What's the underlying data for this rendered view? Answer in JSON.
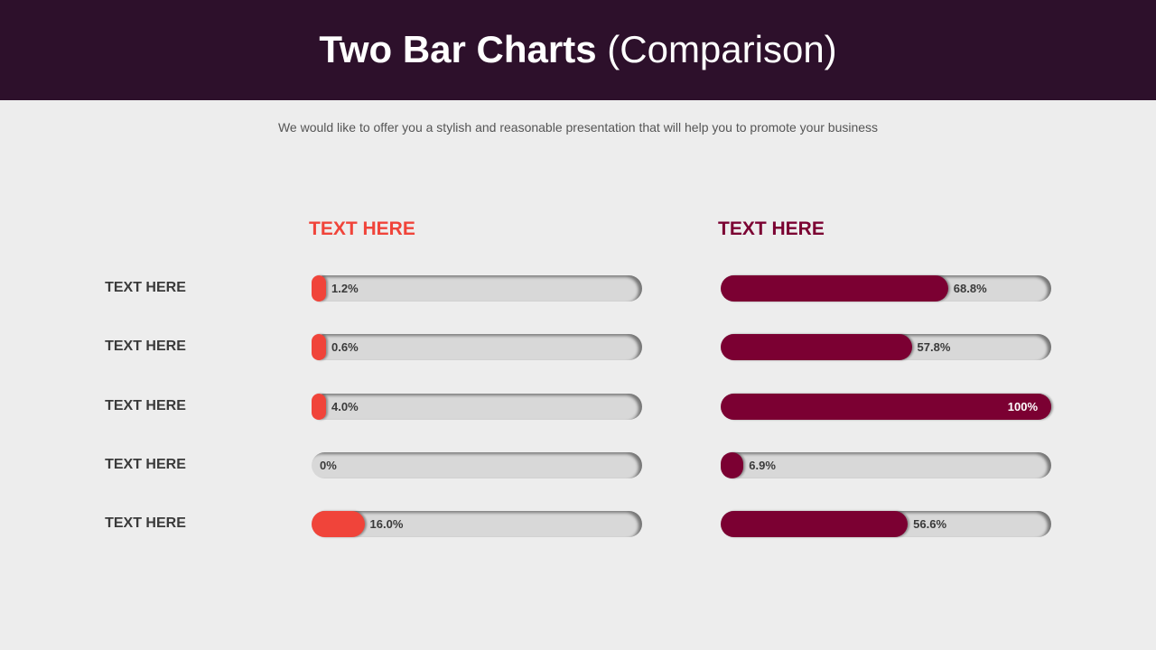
{
  "header": {
    "title_bold": "Two Bar Charts",
    "title_normal": "(Comparison)"
  },
  "subtitle": "We would like to offer you a stylish and reasonable presentation that will help you to promote your business",
  "colors": {
    "background": "#ededed",
    "header": "#2d102b",
    "left_series": "#f0443a",
    "right_series": "#7b0032",
    "track": "#d8d8d8"
  },
  "chart_data": {
    "type": "bar",
    "orientation": "horizontal",
    "categories": [
      "TEXT HERE",
      "TEXT HERE",
      "TEXT HERE",
      "TEXT HERE",
      "TEXT HERE"
    ],
    "xlim": [
      0,
      100
    ],
    "series": [
      {
        "name": "TEXT HERE",
        "values": [
          1.2,
          0.6,
          4.0,
          0,
          16.0
        ],
        "labels": [
          "1.2%",
          "0.6%",
          "4.0%",
          "0%",
          "16.0%"
        ]
      },
      {
        "name": "TEXT HERE",
        "values": [
          68.8,
          57.8,
          100,
          6.9,
          56.6
        ],
        "labels": [
          "68.8%",
          "57.8%",
          "100%",
          "6.9%",
          "56.6%"
        ]
      }
    ]
  }
}
